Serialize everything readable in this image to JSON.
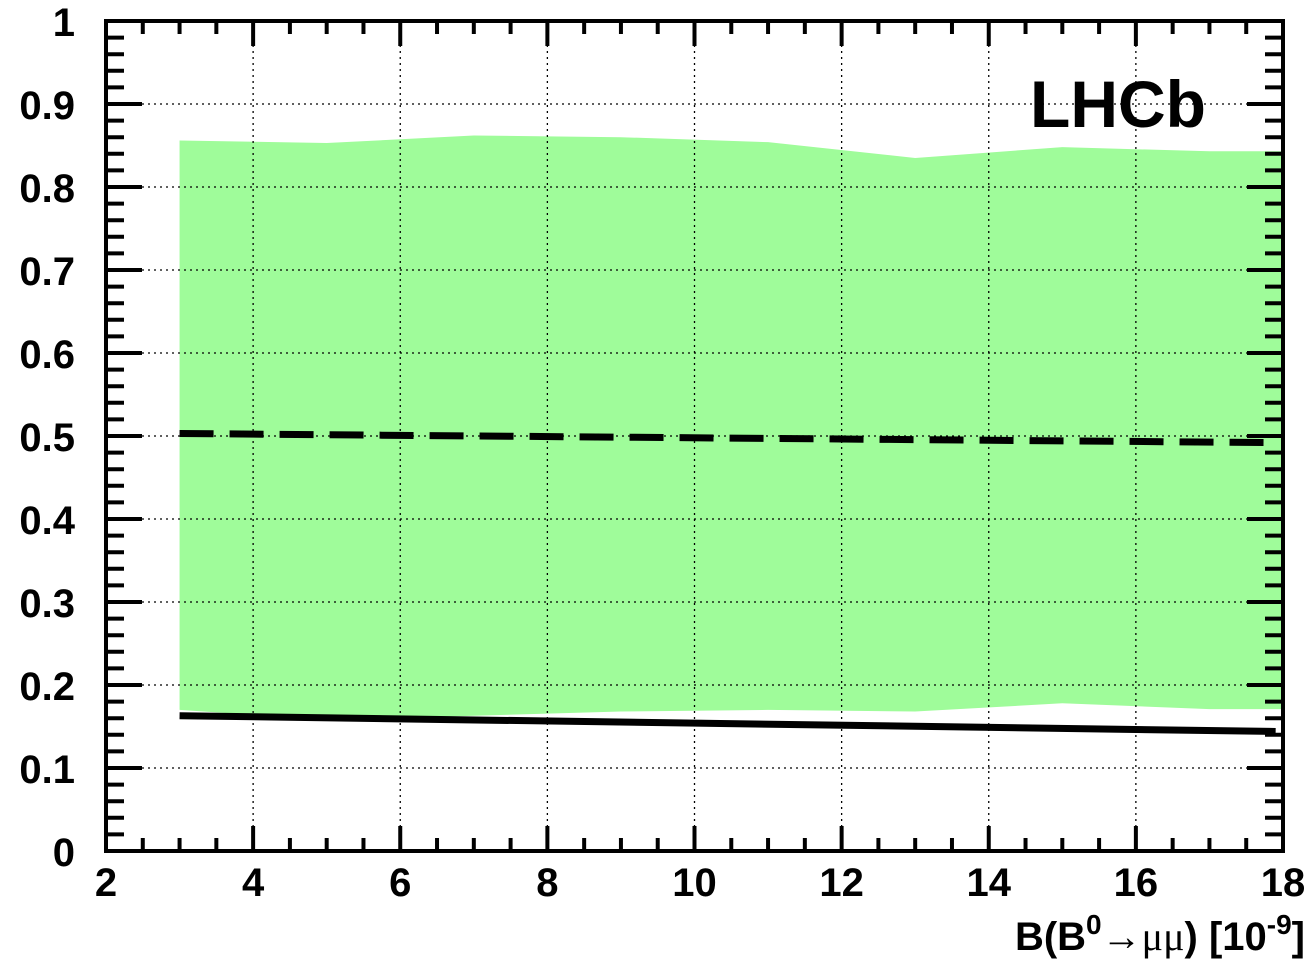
{
  "chart_data": {
    "type": "line",
    "title": "",
    "annotation": "LHCb",
    "xlabel": {
      "prefix": "B(B",
      "sup": "0",
      "arrow": "→",
      "mu": "μμ",
      "unit_open": ") [10",
      "unit_sup": "-9",
      "unit_close": "]"
    },
    "ylabel": "",
    "xlim": [
      2,
      18
    ],
    "ylim": [
      0,
      1
    ],
    "xticks": [
      2,
      4,
      6,
      8,
      10,
      12,
      14,
      16,
      18
    ],
    "xtick_labels": [
      "2",
      "4",
      "6",
      "8",
      "10",
      "12",
      "14",
      "16",
      "18"
    ],
    "yticks": [
      0,
      0.1,
      0.2,
      0.3,
      0.4,
      0.5,
      0.6,
      0.7,
      0.8,
      0.9,
      1
    ],
    "ytick_labels": [
      "0",
      "0.1",
      "0.2",
      "0.3",
      "0.4",
      "0.5",
      "0.6",
      "0.7",
      "0.8",
      "0.9",
      "1"
    ],
    "grid": true,
    "band": {
      "color": "#9ffc9a",
      "x": [
        3,
        5,
        7,
        9,
        11,
        13,
        15,
        17,
        18
      ],
      "upper": [
        0.856,
        0.853,
        0.862,
        0.86,
        0.854,
        0.835,
        0.848,
        0.843,
        0.843
      ],
      "lower": [
        0.17,
        0.158,
        0.163,
        0.168,
        0.17,
        0.168,
        0.178,
        0.171,
        0.171
      ]
    },
    "series": [
      {
        "style": "dashed",
        "color": "#000000",
        "x": [
          3,
          17.9
        ],
        "values": [
          0.503,
          0.492
        ]
      },
      {
        "style": "solid",
        "color": "#000000",
        "x": [
          3,
          17.9
        ],
        "values": [
          0.163,
          0.144
        ]
      }
    ]
  }
}
